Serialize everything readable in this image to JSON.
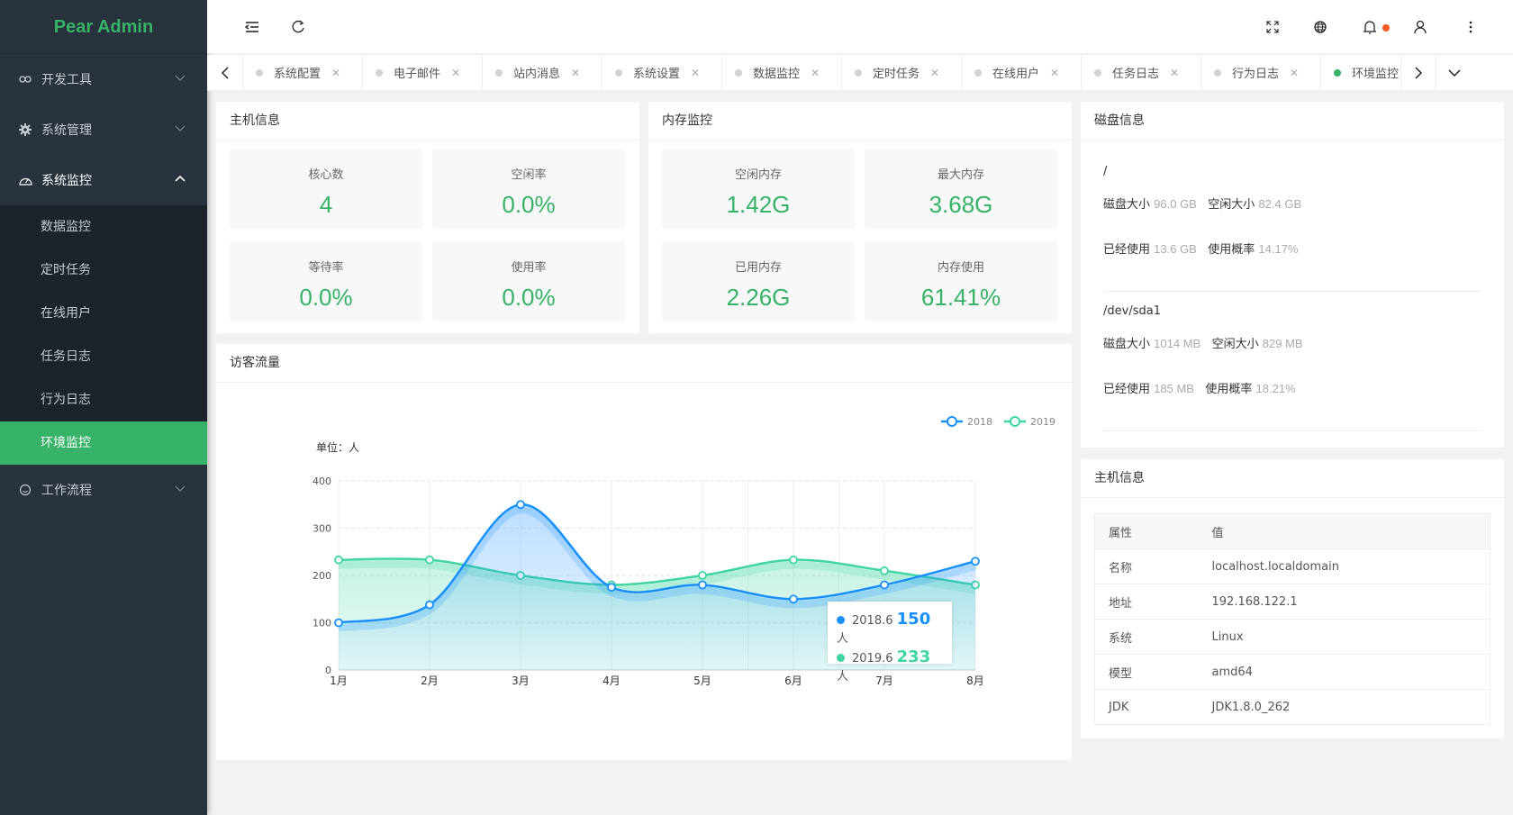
{
  "app": {
    "title": "Pear Admin"
  },
  "sidebar": {
    "items": [
      {
        "label": "开发工具",
        "icon": "link-icon"
      },
      {
        "label": "系统管理",
        "icon": "gear-icon"
      },
      {
        "label": "系统监控",
        "icon": "dashboard-icon",
        "open": true,
        "children": [
          "数据监控",
          "定时任务",
          "在线用户",
          "任务日志",
          "行为日志",
          "环境监控"
        ],
        "active_child": "环境监控"
      },
      {
        "label": "工作流程",
        "icon": "smile-icon"
      }
    ]
  },
  "header": {
    "icons": [
      "menu-fold-icon",
      "refresh-icon",
      "fullscreen-icon",
      "globe-icon",
      "bell-icon",
      "user-icon",
      "more-icon"
    ],
    "notification_dot_color": "#ff5722"
  },
  "tabs": {
    "items": [
      "系统配置",
      "电子邮件",
      "站内消息",
      "系统设置",
      "数据监控",
      "定时任务",
      "在线用户",
      "任务日志",
      "行为日志",
      "环境监控"
    ],
    "active": "环境监控"
  },
  "host": {
    "title": "主机信息",
    "stats": [
      {
        "label": "核心数",
        "value": "4"
      },
      {
        "label": "空闲率",
        "value": "0.0%"
      },
      {
        "label": "等待率",
        "value": "0.0%"
      },
      {
        "label": "使用率",
        "value": "0.0%"
      }
    ]
  },
  "memory": {
    "title": "内存监控",
    "stats": [
      {
        "label": "空闲内存",
        "value": "1.42G"
      },
      {
        "label": "最大内存",
        "value": "3.68G"
      },
      {
        "label": "已用内存",
        "value": "2.26G"
      },
      {
        "label": "内存使用",
        "value": "61.41%"
      }
    ]
  },
  "disk": {
    "title": "磁盘信息",
    "items": [
      {
        "path": "/",
        "size_label": "磁盘大小",
        "size": "96.0 GB",
        "free_label": "空闲大小",
        "free": "82.4 GB",
        "used_label": "已经使用",
        "used": "13.6 GB",
        "rate_label": "使用概率",
        "rate": "14.17%"
      },
      {
        "path": "/dev/sda1",
        "size_label": "磁盘大小",
        "size": "1014 MB",
        "free_label": "空闲大小",
        "free": "829 MB",
        "used_label": "已经使用",
        "used": "185 MB",
        "rate_label": "使用概率",
        "rate": "18.21%"
      }
    ]
  },
  "hostinfo": {
    "title": "主机信息",
    "headers": [
      "属性",
      "值"
    ],
    "rows": [
      [
        "名称",
        "localhost.localdomain"
      ],
      [
        "地址",
        "192.168.122.1"
      ],
      [
        "系统",
        "Linux"
      ],
      [
        "模型",
        "amd64"
      ],
      [
        "JDK",
        "JDK1.8.0_262"
      ]
    ]
  },
  "visitors": {
    "title": "访客流量"
  },
  "chart_data": {
    "type": "area",
    "unit_label": "单位：人",
    "categories": [
      "1月",
      "2月",
      "3月",
      "4月",
      "5月",
      "6月",
      "7月",
      "8月"
    ],
    "ylim": [
      0,
      400
    ],
    "yticks": [
      0,
      100,
      200,
      300,
      400
    ],
    "legend_position": "top-right",
    "grid": true,
    "series": [
      {
        "name": "2018",
        "color": "#1890ff",
        "values": [
          100,
          138,
          350,
          175,
          180,
          150,
          180,
          230
        ]
      },
      {
        "name": "2019",
        "color": "#3fd6a1",
        "values": [
          233,
          233,
          200,
          180,
          200,
          233,
          210,
          180
        ]
      }
    ],
    "tooltip": {
      "category": "6月",
      "rows": [
        {
          "label": "2018.6",
          "value": "150",
          "unit": "人"
        },
        {
          "label": "2019.6",
          "value": "233",
          "unit": "人"
        }
      ]
    }
  }
}
